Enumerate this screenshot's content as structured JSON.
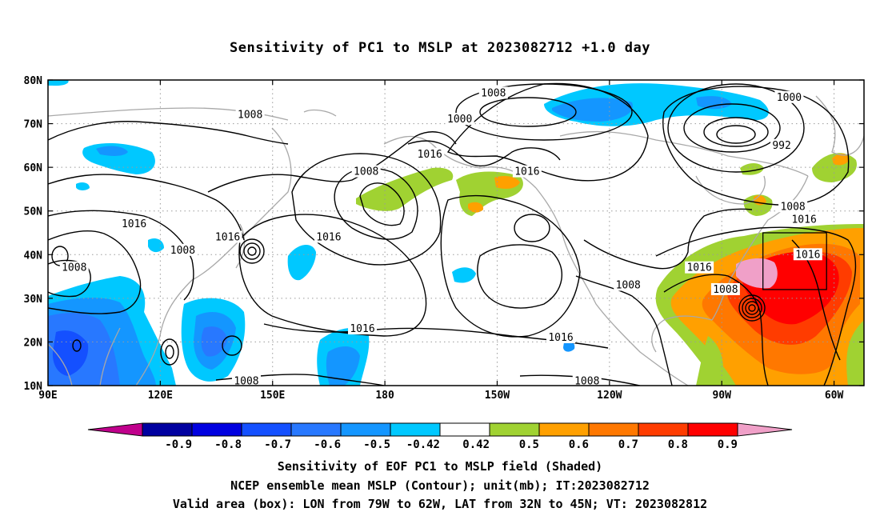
{
  "title": "Sensitivity of PC1 to MSLP at 2023082712 +1.0 day",
  "map": {
    "lon_range": [
      90,
      308
    ],
    "lat_range": [
      10,
      80
    ],
    "lat_ticks": [
      {
        "value": 80,
        "label": "80N"
      },
      {
        "value": 70,
        "label": "70N"
      },
      {
        "value": 60,
        "label": "60N"
      },
      {
        "value": 50,
        "label": "50N"
      },
      {
        "value": 40,
        "label": "40N"
      },
      {
        "value": 30,
        "label": "30N"
      },
      {
        "value": 20,
        "label": "20N"
      },
      {
        "value": 10,
        "label": "10N"
      }
    ],
    "lon_ticks": [
      {
        "value": 90,
        "label": "90E"
      },
      {
        "value": 120,
        "label": "120E"
      },
      {
        "value": 150,
        "label": "150E"
      },
      {
        "value": 180,
        "label": "180"
      },
      {
        "value": 210,
        "label": "150W"
      },
      {
        "value": 240,
        "label": "120W"
      },
      {
        "value": 270,
        "label": "90W"
      },
      {
        "value": 300,
        "label": "60W"
      }
    ],
    "valid_box": {
      "lon_min": 281,
      "lon_max": 298,
      "lat_min": 32,
      "lat_max": 45
    },
    "contour_labels": [
      {
        "text": "1008",
        "lon": 144,
        "lat": 72
      },
      {
        "text": "1008",
        "lon": 209,
        "lat": 77
      },
      {
        "text": "1000",
        "lon": 200,
        "lat": 71
      },
      {
        "text": "1000",
        "lon": 288,
        "lat": 76
      },
      {
        "text": "992",
        "lon": 286,
        "lat": 65
      },
      {
        "text": "1016",
        "lon": 192,
        "lat": 63
      },
      {
        "text": "1016",
        "lon": 218,
        "lat": 59
      },
      {
        "text": "1008",
        "lon": 175,
        "lat": 59
      },
      {
        "text": "1008",
        "lon": 289,
        "lat": 51
      },
      {
        "text": "1016",
        "lon": 292,
        "lat": 48
      },
      {
        "text": "1016",
        "lon": 113,
        "lat": 47
      },
      {
        "text": "1016",
        "lon": 138,
        "lat": 44
      },
      {
        "text": "1008",
        "lon": 126,
        "lat": 41
      },
      {
        "text": "1008",
        "lon": 97,
        "lat": 37
      },
      {
        "text": "1016",
        "lon": 165,
        "lat": 44
      },
      {
        "text": "1016",
        "lon": 293,
        "lat": 40
      },
      {
        "text": "1016",
        "lon": 264,
        "lat": 37
      },
      {
        "text": "1008",
        "lon": 245,
        "lat": 33
      },
      {
        "text": "1008",
        "lon": 271,
        "lat": 32
      },
      {
        "text": "1016",
        "lon": 174,
        "lat": 23
      },
      {
        "text": "1016",
        "lon": 227,
        "lat": 21
      },
      {
        "text": "1008",
        "lon": 143,
        "lat": 11
      },
      {
        "text": "1008",
        "lon": 234,
        "lat": 11
      }
    ]
  },
  "colorbar": {
    "labels": [
      "-0.9",
      "-0.8",
      "-0.7",
      "-0.6",
      "-0.5",
      "-0.42",
      "0.42",
      "0.5",
      "0.6",
      "0.7",
      "0.8",
      "0.9"
    ],
    "low_end_color": "#c0008c",
    "high_end_color": "#f0a0c8",
    "colors": [
      "#0000a0",
      "#0000e0",
      "#1450ff",
      "#2878ff",
      "#1496ff",
      "#00c8ff",
      "#ffffff",
      "#a0d232",
      "#ffa000",
      "#ff7800",
      "#ff3c00",
      "#ff0000"
    ]
  },
  "captions": {
    "line1": "Sensitivity of EOF PC1 to MSLP field (Shaded)",
    "line2": "NCEP ensemble mean MSLP (Contour); unit(mb); IT:2023082712",
    "line3": "Valid area (box): LON from 79W to 62W, LAT from 32N to 45N; VT: 2023082812"
  }
}
